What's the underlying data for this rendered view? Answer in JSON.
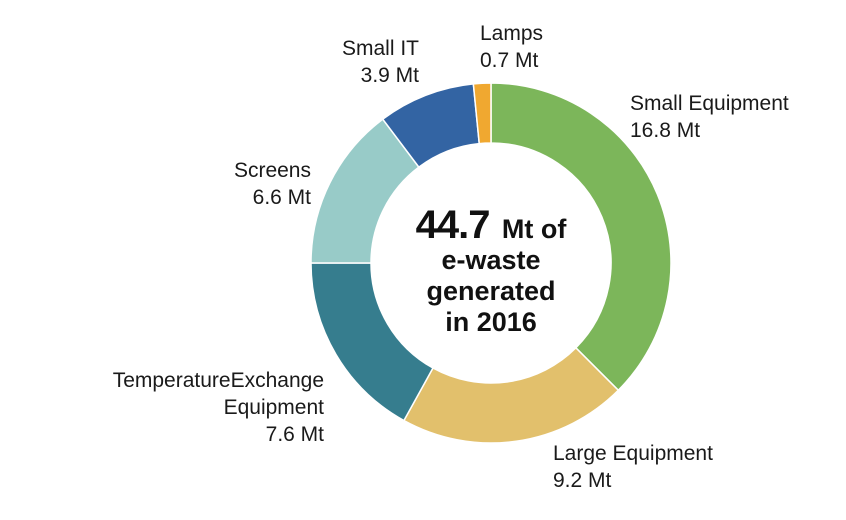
{
  "chart_data": {
    "type": "pie",
    "variant": "donut",
    "center_text": {
      "value": "44.7",
      "line1_rest": "Mt of",
      "line2": "e-waste",
      "line3": "generated",
      "line4": "in 2016"
    },
    "unit": "Mt",
    "slices": [
      {
        "name": "Small Equipment",
        "value": 16.8,
        "value_label": "16.8 Mt",
        "color": "#7cb65a"
      },
      {
        "name": "Large Equipment",
        "value": 9.2,
        "value_label": "9.2 Mt",
        "color": "#e2c06c"
      },
      {
        "name": "TemperatureExchange Equipment",
        "name_lines": [
          "TemperatureExchange",
          "Equipment"
        ],
        "value": 7.6,
        "value_label": "7.6 Mt",
        "color": "#367d8e"
      },
      {
        "name": "Screens",
        "value": 6.6,
        "value_label": "6.6 Mt",
        "color": "#98cbc8"
      },
      {
        "name": "Small IT",
        "value": 3.9,
        "value_label": "3.9 Mt",
        "color": "#3364a3"
      },
      {
        "name": "Lamps",
        "value": 0.7,
        "value_label": "0.7 Mt",
        "color": "#f0a830"
      }
    ]
  }
}
